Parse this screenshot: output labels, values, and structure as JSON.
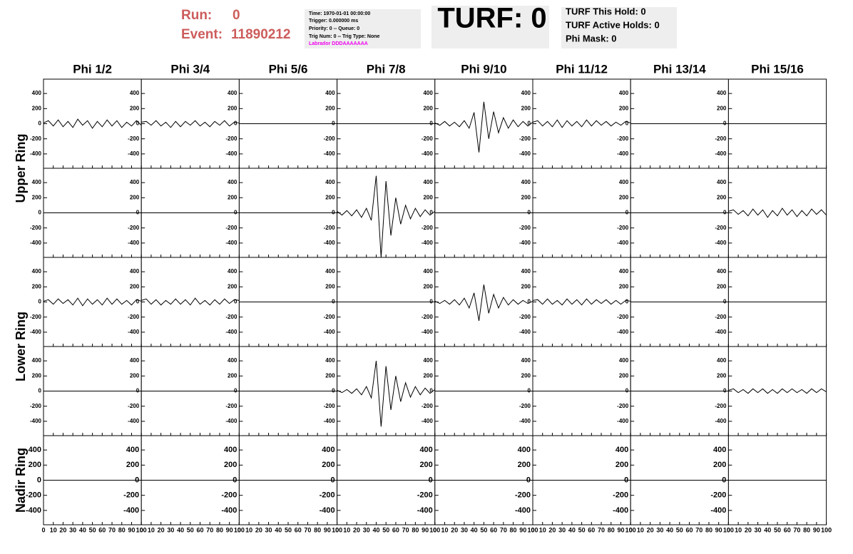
{
  "header": {
    "run_label": "Run:",
    "run": "0",
    "event_label": "Event:",
    "event": "11890212",
    "info": [
      "Time: 1970-01-01 00:00:00",
      "Trigger: 0.000000 ms",
      "Priority: 0 -- Queue: 0",
      "Trig Num: 0 -- Trig Type: None"
    ],
    "labrador": "Labrador DDDAAAAAAA",
    "turf": "TURF: 0",
    "turf_info": [
      "TURF This Hold: 0",
      "TURF Active Holds: 0",
      "Phi Mask: 0"
    ]
  },
  "chart_data": {
    "type": "line",
    "column_titles": [
      "Phi 1/2",
      "Phi 3/4",
      "Phi 5/6",
      "Phi 7/8",
      "Phi 9/10",
      "Phi 11/12",
      "Phi 13/14",
      "Phi 15/16"
    ],
    "row_titles": [
      "Upper Ring",
      "Lower Ring",
      "Nadir Ring"
    ],
    "color": "#000000",
    "x": [
      0,
      5,
      10,
      15,
      20,
      25,
      30,
      35,
      40,
      45,
      50,
      55,
      60,
      65,
      70,
      75,
      80,
      85,
      90,
      95,
      100
    ],
    "xlim": [
      0,
      100
    ],
    "xticks": [
      0,
      10,
      20,
      30,
      40,
      50,
      60,
      70,
      80,
      90,
      100
    ],
    "ylim": [
      -590,
      590
    ],
    "yticks": [
      -400,
      -200,
      0,
      200,
      400
    ],
    "panels": [
      [
        {
          "values": [
            10,
            40,
            -30,
            50,
            -40,
            30,
            -50,
            60,
            -20,
            40,
            -60,
            30,
            -40,
            50,
            -30,
            40,
            -50,
            20,
            -30,
            40,
            -20
          ]
        },
        {
          "values": [
            20,
            30,
            -20,
            40,
            -30,
            20,
            -50,
            30,
            -40,
            30,
            -20,
            40,
            -30,
            20,
            -40,
            30,
            -20,
            40,
            -30,
            20,
            10
          ]
        },
        {
          "values": [
            0,
            0,
            0,
            0,
            0,
            0,
            0,
            0,
            0,
            0,
            0,
            0,
            0,
            0,
            0,
            0,
            0,
            0,
            0,
            0,
            0
          ]
        },
        {
          "values": [
            0,
            0,
            0,
            0,
            0,
            0,
            0,
            0,
            0,
            0,
            0,
            0,
            0,
            0,
            0,
            0,
            0,
            0,
            0,
            0,
            0
          ]
        },
        {
          "values": [
            10,
            -20,
            30,
            -30,
            20,
            -40,
            40,
            -60,
            150,
            -380,
            290,
            -200,
            160,
            -120,
            80,
            -60,
            50,
            -40,
            30,
            -30,
            20
          ]
        },
        {
          "values": [
            20,
            40,
            -30,
            30,
            -40,
            50,
            -50,
            40,
            -30,
            30,
            -40,
            50,
            -30,
            40,
            -20,
            30,
            -30,
            20,
            -20,
            30,
            10
          ]
        },
        {
          "values": [
            0,
            0,
            0,
            0,
            0,
            0,
            0,
            0,
            0,
            0,
            0,
            0,
            0,
            0,
            0,
            0,
            0,
            0,
            0,
            0,
            0
          ]
        },
        {
          "values": [
            0,
            0,
            0,
            0,
            0,
            0,
            0,
            0,
            0,
            0,
            0,
            0,
            0,
            0,
            0,
            0,
            0,
            0,
            0,
            0,
            0
          ]
        }
      ],
      [
        {
          "values": [
            0,
            0,
            0,
            0,
            0,
            0,
            0,
            0,
            0,
            0,
            0,
            0,
            0,
            0,
            0,
            0,
            0,
            0,
            0,
            0,
            0
          ]
        },
        {
          "values": [
            0,
            0,
            0,
            0,
            0,
            0,
            0,
            0,
            0,
            0,
            0,
            0,
            0,
            0,
            0,
            0,
            0,
            0,
            0,
            0,
            0
          ]
        },
        {
          "values": [
            0,
            0,
            0,
            0,
            0,
            0,
            0,
            0,
            0,
            0,
            0,
            0,
            0,
            0,
            0,
            0,
            0,
            0,
            0,
            0,
            0
          ]
        },
        {
          "values": [
            20,
            -30,
            30,
            -40,
            40,
            -60,
            60,
            -100,
            490,
            -590,
            420,
            -300,
            200,
            -150,
            100,
            -80,
            60,
            -50,
            40,
            -30,
            20
          ]
        },
        {
          "values": [
            0,
            0,
            0,
            0,
            0,
            0,
            0,
            0,
            0,
            0,
            0,
            0,
            0,
            0,
            0,
            0,
            0,
            0,
            0,
            0,
            0
          ]
        },
        {
          "values": [
            0,
            0,
            0,
            0,
            0,
            0,
            0,
            0,
            0,
            0,
            0,
            0,
            0,
            0,
            0,
            0,
            0,
            0,
            0,
            0,
            0
          ]
        },
        {
          "values": [
            0,
            0,
            0,
            0,
            0,
            0,
            0,
            0,
            0,
            0,
            0,
            0,
            0,
            0,
            0,
            0,
            0,
            0,
            0,
            0,
            0
          ]
        },
        {
          "values": [
            20,
            40,
            -20,
            30,
            -40,
            50,
            -30,
            40,
            -60,
            30,
            -40,
            60,
            -30,
            40,
            -50,
            30,
            -40,
            50,
            -20,
            40,
            -30
          ]
        }
      ],
      [
        {
          "values": [
            10,
            30,
            -30,
            40,
            -20,
            30,
            -40,
            50,
            -50,
            40,
            -30,
            30,
            -40,
            50,
            -30,
            40,
            -30,
            20,
            -40,
            30,
            10
          ]
        },
        {
          "values": [
            20,
            40,
            -30,
            30,
            -40,
            20,
            -30,
            40,
            -30,
            30,
            -40,
            50,
            -30,
            20,
            -40,
            30,
            -30,
            40,
            -20,
            30,
            20
          ]
        },
        {
          "values": [
            0,
            0,
            0,
            0,
            0,
            0,
            0,
            0,
            0,
            0,
            0,
            0,
            0,
            0,
            0,
            0,
            0,
            0,
            0,
            0,
            0
          ]
        },
        {
          "values": [
            0,
            0,
            0,
            0,
            0,
            0,
            0,
            0,
            0,
            0,
            0,
            0,
            0,
            0,
            0,
            0,
            0,
            0,
            0,
            0,
            0
          ]
        },
        {
          "values": [
            10,
            -20,
            20,
            -30,
            30,
            -40,
            50,
            -80,
            120,
            -250,
            230,
            -150,
            100,
            -80,
            60,
            -40,
            30,
            -30,
            20,
            -20,
            10
          ]
        },
        {
          "values": [
            20,
            30,
            -30,
            40,
            -30,
            20,
            -40,
            40,
            -30,
            30,
            -40,
            40,
            -30,
            30,
            -20,
            30,
            -30,
            20,
            -30,
            20,
            10
          ]
        },
        {
          "values": [
            0,
            0,
            0,
            0,
            0,
            0,
            0,
            0,
            0,
            0,
            0,
            0,
            0,
            0,
            0,
            0,
            0,
            0,
            0,
            0,
            0
          ]
        },
        {
          "values": [
            0,
            0,
            0,
            0,
            0,
            0,
            0,
            0,
            0,
            0,
            0,
            0,
            0,
            0,
            0,
            0,
            0,
            0,
            0,
            0,
            0
          ]
        }
      ],
      [
        {
          "values": [
            0,
            0,
            0,
            0,
            0,
            0,
            0,
            0,
            0,
            0,
            0,
            0,
            0,
            0,
            0,
            0,
            0,
            0,
            0,
            0,
            0
          ]
        },
        {
          "values": [
            0,
            0,
            0,
            0,
            0,
            0,
            0,
            0,
            0,
            0,
            0,
            0,
            0,
            0,
            0,
            0,
            0,
            0,
            0,
            0,
            0
          ]
        },
        {
          "values": [
            0,
            0,
            0,
            0,
            0,
            0,
            0,
            0,
            0,
            0,
            0,
            0,
            0,
            0,
            0,
            0,
            0,
            0,
            0,
            0,
            0
          ]
        },
        {
          "values": [
            10,
            -20,
            20,
            -30,
            30,
            -50,
            60,
            -90,
            400,
            -470,
            330,
            -250,
            200,
            -140,
            110,
            -80,
            60,
            -50,
            40,
            -30,
            20
          ]
        },
        {
          "values": [
            0,
            0,
            0,
            0,
            0,
            0,
            0,
            0,
            0,
            0,
            0,
            0,
            0,
            0,
            0,
            0,
            0,
            0,
            0,
            0,
            0
          ]
        },
        {
          "values": [
            0,
            0,
            0,
            0,
            0,
            0,
            0,
            0,
            0,
            0,
            0,
            0,
            0,
            0,
            0,
            0,
            0,
            0,
            0,
            0,
            0
          ]
        },
        {
          "values": [
            0,
            0,
            0,
            0,
            0,
            0,
            0,
            0,
            0,
            0,
            0,
            0,
            0,
            0,
            0,
            0,
            0,
            0,
            0,
            0,
            0
          ]
        },
        {
          "values": [
            10,
            30,
            -20,
            20,
            -30,
            30,
            -20,
            30,
            -30,
            20,
            -30,
            30,
            -20,
            30,
            -20,
            20,
            -30,
            30,
            -20,
            30,
            -10
          ]
        }
      ],
      [
        {
          "values": [
            0,
            0,
            0,
            0,
            0,
            0,
            0,
            0,
            0,
            0,
            0,
            0,
            0,
            0,
            0,
            0,
            0,
            0,
            0,
            0,
            0
          ]
        },
        {
          "values": [
            0,
            0,
            0,
            0,
            0,
            0,
            0,
            0,
            0,
            0,
            0,
            0,
            0,
            0,
            0,
            0,
            0,
            0,
            0,
            0,
            0
          ]
        },
        {
          "values": [
            0,
            0,
            0,
            0,
            0,
            0,
            0,
            0,
            0,
            0,
            0,
            0,
            0,
            0,
            0,
            0,
            0,
            0,
            0,
            0,
            0
          ]
        },
        {
          "values": [
            0,
            0,
            0,
            0,
            0,
            0,
            0,
            0,
            0,
            0,
            0,
            0,
            0,
            0,
            0,
            0,
            0,
            0,
            0,
            0,
            0
          ]
        },
        {
          "values": [
            0,
            0,
            0,
            0,
            0,
            0,
            0,
            0,
            0,
            0,
            0,
            0,
            0,
            0,
            0,
            0,
            0,
            0,
            0,
            0,
            0
          ]
        },
        {
          "values": [
            0,
            0,
            0,
            0,
            0,
            0,
            0,
            0,
            0,
            0,
            0,
            0,
            0,
            0,
            0,
            0,
            0,
            0,
            0,
            0,
            0
          ]
        },
        {
          "values": [
            0,
            0,
            0,
            0,
            0,
            0,
            0,
            0,
            0,
            0,
            0,
            0,
            0,
            0,
            0,
            0,
            0,
            0,
            0,
            0,
            0
          ]
        },
        {
          "values": [
            0,
            0,
            0,
            0,
            0,
            0,
            0,
            0,
            0,
            0,
            0,
            0,
            0,
            0,
            0,
            0,
            0,
            0,
            0,
            0,
            0
          ]
        }
      ]
    ]
  }
}
